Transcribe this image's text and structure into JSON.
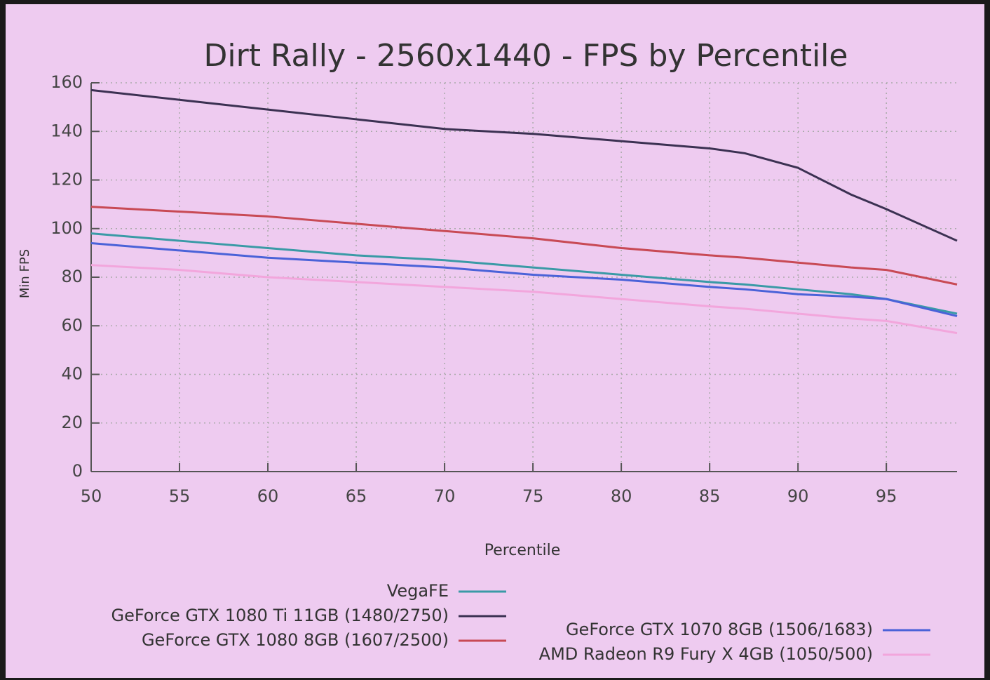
{
  "chart_data": {
    "type": "line",
    "title": "Dirt Rally - 2560x1440 - FPS by Percentile",
    "x_label": "Percentile",
    "y_label": "Min FPS",
    "x": [
      50,
      55,
      60,
      65,
      70,
      75,
      80,
      85,
      87,
      90,
      93,
      95,
      99
    ],
    "series": [
      {
        "name": "VegaFE",
        "color": "#3a9aa6",
        "values": [
          98,
          95,
          92,
          89,
          87,
          84,
          81,
          78,
          77,
          75,
          73,
          71,
          65
        ]
      },
      {
        "name": "GeForce GTX 1080 Ti 11GB (1480/2750)",
        "color": "#3b3152",
        "values": [
          157,
          153,
          149,
          145,
          141,
          139,
          136,
          133,
          131,
          125,
          114,
          108,
          95
        ]
      },
      {
        "name": "GeForce GTX 1080 8GB (1607/2500)",
        "color": "#c84a55",
        "values": [
          109,
          107,
          105,
          102,
          99,
          96,
          92,
          89,
          88,
          86,
          84,
          83,
          77
        ]
      },
      {
        "name": "GeForce GTX 1070 8GB (1506/1683)",
        "color": "#4a62d8",
        "values": [
          94,
          91,
          88,
          86,
          84,
          81,
          79,
          76,
          75,
          73,
          72,
          71,
          64
        ]
      },
      {
        "name": "AMD Radeon R9 Fury X 4GB (1050/500)",
        "color": "#f2a6dc",
        "values": [
          85,
          83,
          80,
          78,
          76,
          74,
          71,
          68,
          67,
          65,
          63,
          62,
          57
        ]
      }
    ],
    "xlim": [
      50,
      99
    ],
    "xticks": [
      50,
      55,
      60,
      65,
      70,
      75,
      80,
      85,
      90,
      95
    ],
    "ylim": [
      0,
      160
    ],
    "yticks": [
      0,
      20,
      40,
      60,
      80,
      100,
      120,
      140,
      160
    ],
    "grid": true
  }
}
